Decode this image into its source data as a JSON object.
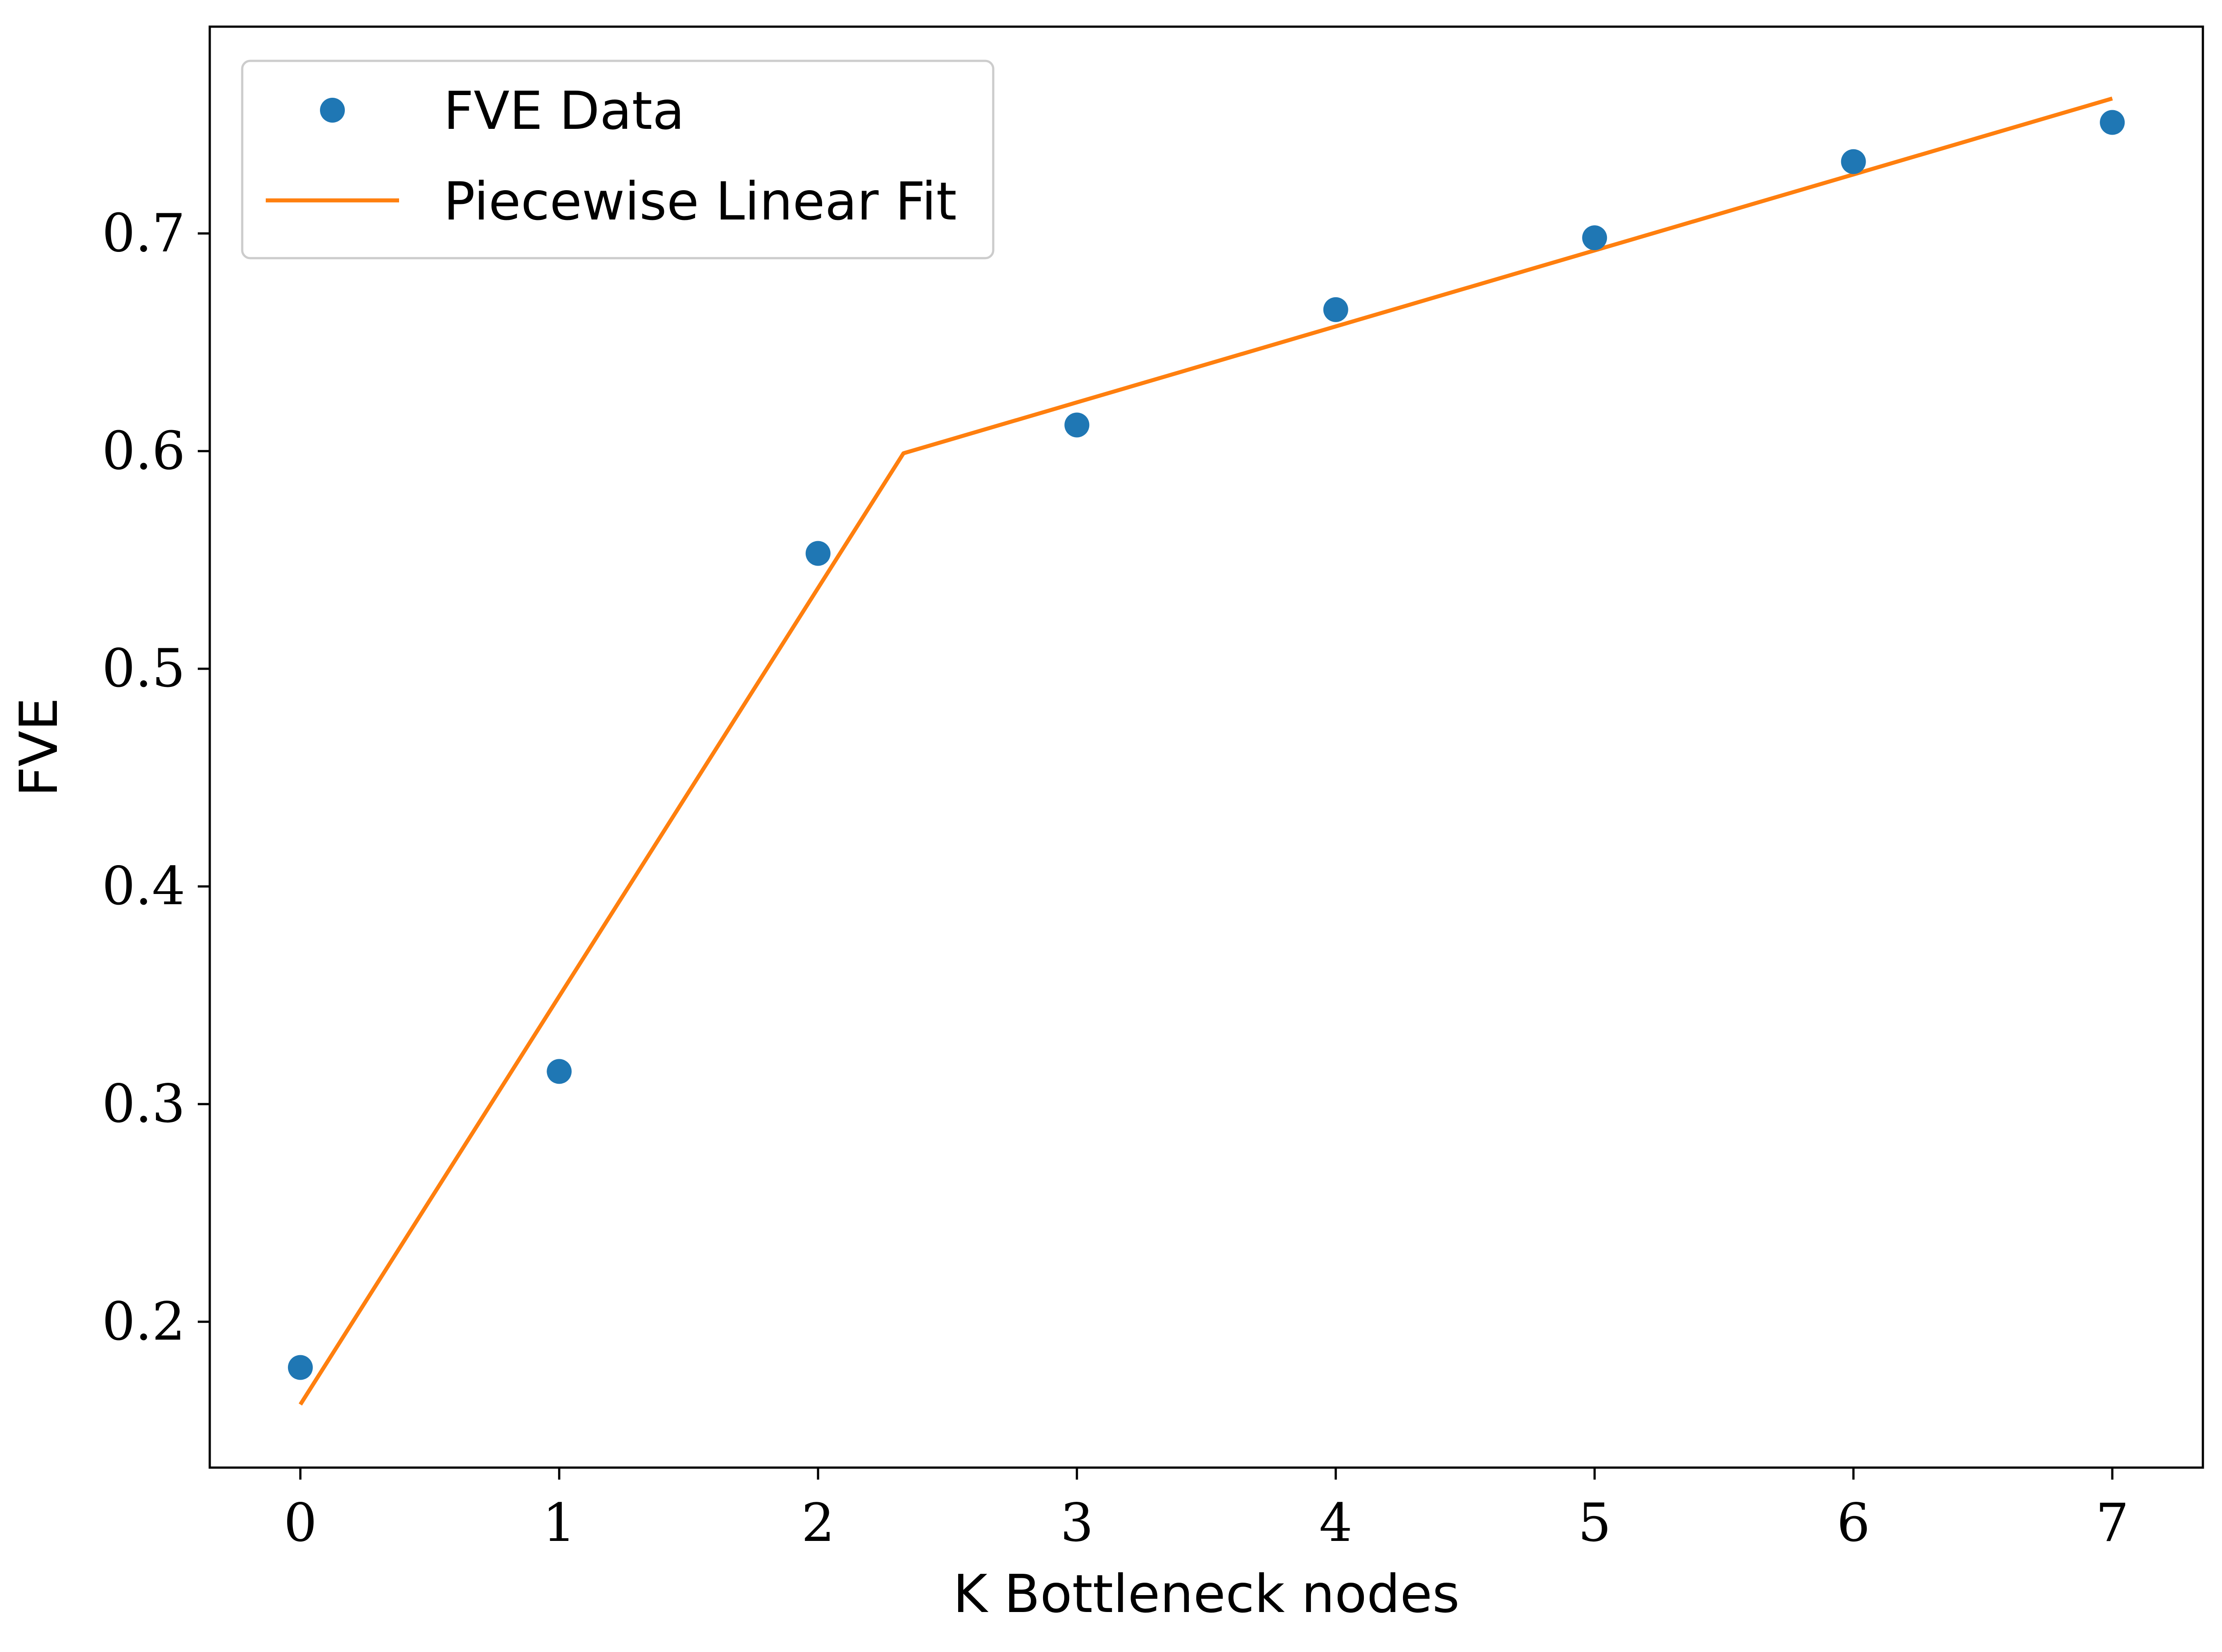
{
  "chart_data": {
    "type": "scatter",
    "title": "",
    "xlabel": "K Bottleneck nodes",
    "ylabel": "FVE",
    "xlim": [
      -0.35,
      7.35
    ],
    "ylim": [
      0.133,
      0.795
    ],
    "xticks": [
      0,
      1,
      2,
      3,
      4,
      5,
      6,
      7
    ],
    "xtick_labels": [
      "0",
      "1",
      "2",
      "3",
      "4",
      "5",
      "6",
      "7"
    ],
    "yticks": [
      0.2,
      0.3,
      0.4,
      0.5,
      0.6,
      0.7
    ],
    "ytick_labels": [
      "0.2",
      "0.3",
      "0.4",
      "0.5",
      "0.6",
      "0.7"
    ],
    "grid": false,
    "legend_position": "top-left",
    "series": [
      {
        "name": "FVE Data",
        "kind": "points",
        "color": "#1f77b4",
        "x": [
          0,
          1,
          2,
          3,
          4,
          5,
          6,
          7
        ],
        "y": [
          0.179,
          0.315,
          0.553,
          0.612,
          0.665,
          0.698,
          0.733,
          0.751
        ]
      },
      {
        "name": "Piecewise Linear Fit",
        "kind": "line",
        "color": "#ff7f0e",
        "x": [
          0,
          2.33,
          7
        ],
        "y": [
          0.162,
          0.599,
          0.762
        ]
      }
    ]
  }
}
